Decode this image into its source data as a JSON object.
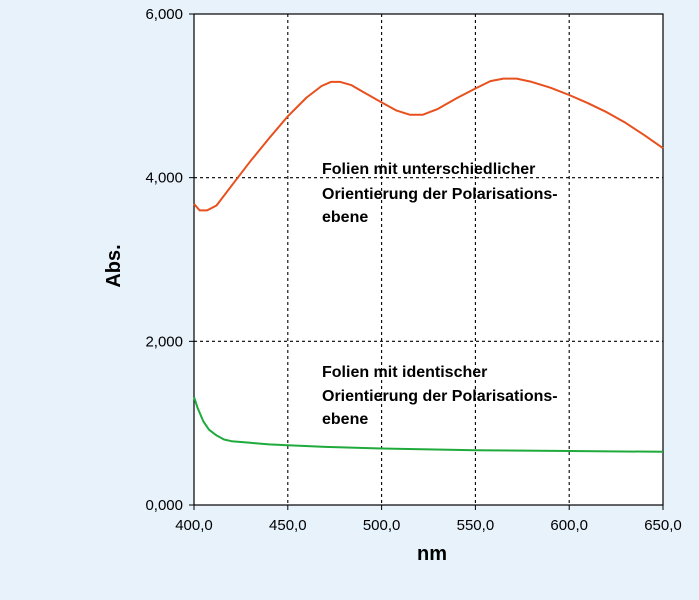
{
  "chart_data": {
    "type": "line",
    "title": "",
    "xlabel": "nm",
    "ylabel": "Abs.",
    "xlim": [
      400,
      650
    ],
    "ylim": [
      0,
      6
    ],
    "grid": true,
    "grid_style": "dotted",
    "x_ticks": [
      400,
      450,
      500,
      550,
      600,
      650
    ],
    "x_tick_labels": [
      "400,0",
      "450,0",
      "500,0",
      "550,0",
      "600,0",
      "650,0"
    ],
    "y_ticks": [
      0,
      2,
      4,
      6
    ],
    "y_tick_labels": [
      "0,000",
      "2,000",
      "4,000",
      "6,000"
    ],
    "series": [
      {
        "color": "#e8501e",
        "x": [
          400,
          403,
          407,
          412,
          420,
          430,
          440,
          450,
          460,
          468,
          473,
          478,
          484,
          490,
          500,
          508,
          515,
          522,
          530,
          540,
          550,
          558,
          565,
          572,
          580,
          590,
          600,
          610,
          620,
          630,
          640,
          650
        ],
        "y": [
          3.68,
          3.6,
          3.6,
          3.66,
          3.9,
          4.2,
          4.48,
          4.75,
          4.98,
          5.12,
          5.17,
          5.17,
          5.13,
          5.05,
          4.92,
          4.82,
          4.77,
          4.77,
          4.84,
          4.97,
          5.09,
          5.18,
          5.21,
          5.21,
          5.17,
          5.1,
          5.01,
          4.91,
          4.8,
          4.67,
          4.52,
          4.36
        ]
      },
      {
        "color": "#1faa3c",
        "x": [
          400,
          402,
          405,
          408,
          412,
          416,
          420,
          430,
          440,
          450,
          470,
          500,
          550,
          600,
          650
        ],
        "y": [
          1.32,
          1.18,
          1.02,
          0.92,
          0.85,
          0.8,
          0.78,
          0.76,
          0.74,
          0.73,
          0.71,
          0.69,
          0.67,
          0.66,
          0.65
        ]
      }
    ],
    "annotations": [
      {
        "lines": [
          "Folien mit unterschiedlicher",
          "Orientierung der Polarisations-",
          "ebene"
        ]
      },
      {
        "lines": [
          "Folien mit identischer",
          "Orientierung der Polarisations-",
          "ebene"
        ]
      }
    ]
  }
}
